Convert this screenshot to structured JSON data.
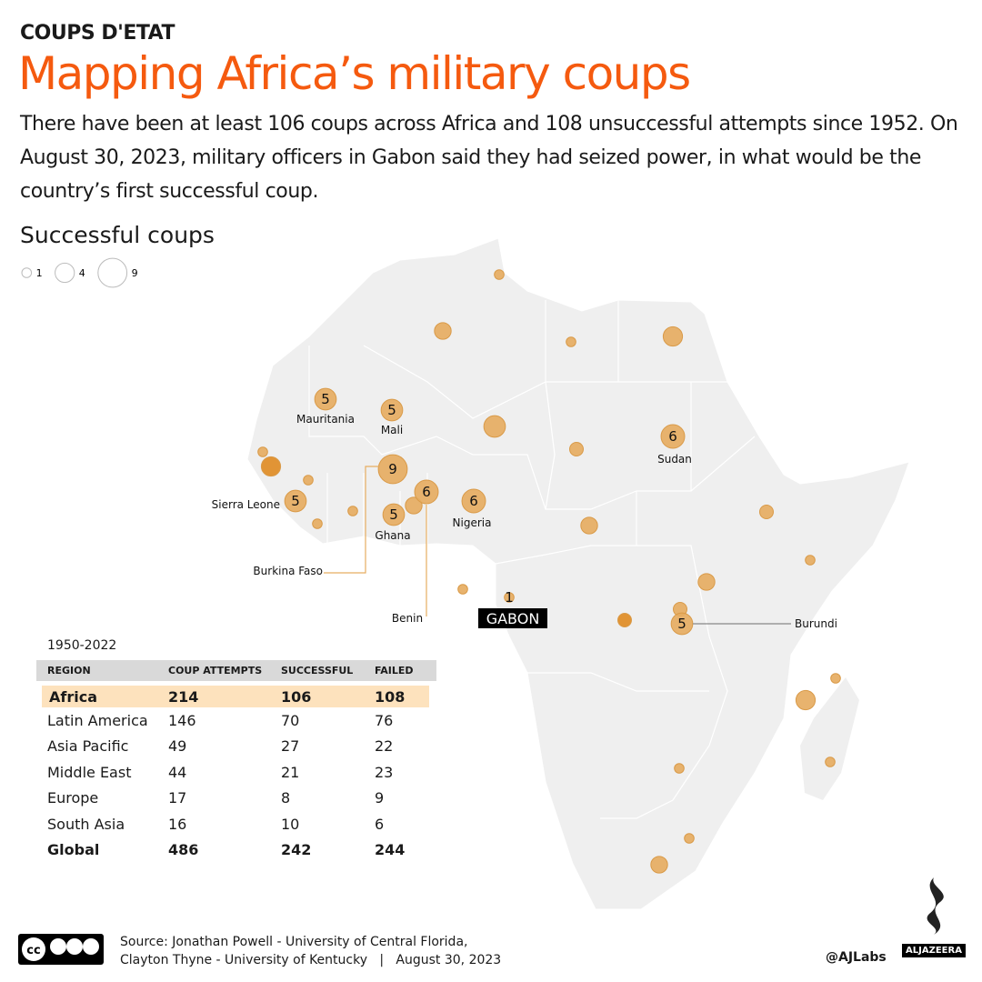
{
  "header": {
    "kicker": "COUPS D'ETAT",
    "title": "Mapping Africa’s military coups",
    "subtitle": "There have been at least 106 coups across Africa and 108 unsuccessful attempts since 1952. On August 30, 2023, military officers in Gabon said they had seized power, in what would be the country’s first successful coup."
  },
  "legend": {
    "title": "Successful coups",
    "sizes": [
      {
        "value": 1,
        "label": "1"
      },
      {
        "value": 4,
        "label": "4"
      },
      {
        "value": 9,
        "label": "9"
      }
    ]
  },
  "colors": {
    "accent": "#f55a0f",
    "bubble": "#e6ad62",
    "bubble_dark": "#e08c25",
    "land": "#efefef"
  },
  "map": {
    "highlight": {
      "label": "GABON"
    },
    "bubbles": [
      {
        "value": 1
      },
      {
        "value": 3
      },
      {
        "value": 1
      },
      {
        "value": 4
      },
      {
        "value": 5,
        "label": "Mauritania",
        "show": "5"
      },
      {
        "value": 5,
        "label": "Mali",
        "show": "5"
      },
      {
        "value": 5
      },
      {
        "value": 6,
        "label": "Sudan",
        "show": "6"
      },
      {
        "value": 2
      },
      {
        "value": 1
      },
      {
        "value": 4
      },
      {
        "value": 1
      },
      {
        "value": 9,
        "label": "Burkina Faso",
        "show": "9"
      },
      {
        "value": 5,
        "label": "Sierra Leone",
        "show": "5"
      },
      {
        "value": 1
      },
      {
        "value": 1
      },
      {
        "value": 5,
        "label": "Ghana",
        "show": "5"
      },
      {
        "value": 3
      },
      {
        "value": 6,
        "label": "Benin",
        "show": "6"
      },
      {
        "value": 6,
        "label": "Nigeria",
        "show": "6"
      },
      {
        "value": 3
      },
      {
        "value": 2
      },
      {
        "value": 1
      },
      {
        "value": 1,
        "label": "Gabon",
        "show": "1"
      },
      {
        "value": 3
      },
      {
        "value": 2
      },
      {
        "value": 5,
        "label": "Burundi",
        "show": "5"
      },
      {
        "value": 2
      },
      {
        "value": 1
      },
      {
        "value": 1
      },
      {
        "value": 4
      },
      {
        "value": 1
      },
      {
        "value": 1
      },
      {
        "value": 1
      },
      {
        "value": 3
      }
    ]
  },
  "table": {
    "period": "1950-2022",
    "headers": [
      "REGION",
      "COUP ATTEMPTS",
      "SUCCESSFUL",
      "FAILED"
    ],
    "rows": [
      [
        "Africa",
        "214",
        "106",
        "108"
      ],
      [
        "Latin America",
        "146",
        "70",
        "76"
      ],
      [
        "Asia Pacific",
        "49",
        "27",
        "22"
      ],
      [
        "Middle East",
        "44",
        "21",
        "23"
      ],
      [
        "Europe",
        "17",
        "8",
        "9"
      ],
      [
        "South Asia",
        "16",
        "10",
        "6"
      ],
      [
        "Global",
        "486",
        "242",
        "244"
      ]
    ]
  },
  "footer": {
    "source_line1": "Source: Jonathan Powell - University of Central Florida,",
    "source_line2": "Clayton Thyne - University of Kentucky   |   August 30, 2023",
    "license": "cc-by-nc-sa-icon",
    "handle": "@AJLabs",
    "logo": "ALJAZEERA"
  }
}
